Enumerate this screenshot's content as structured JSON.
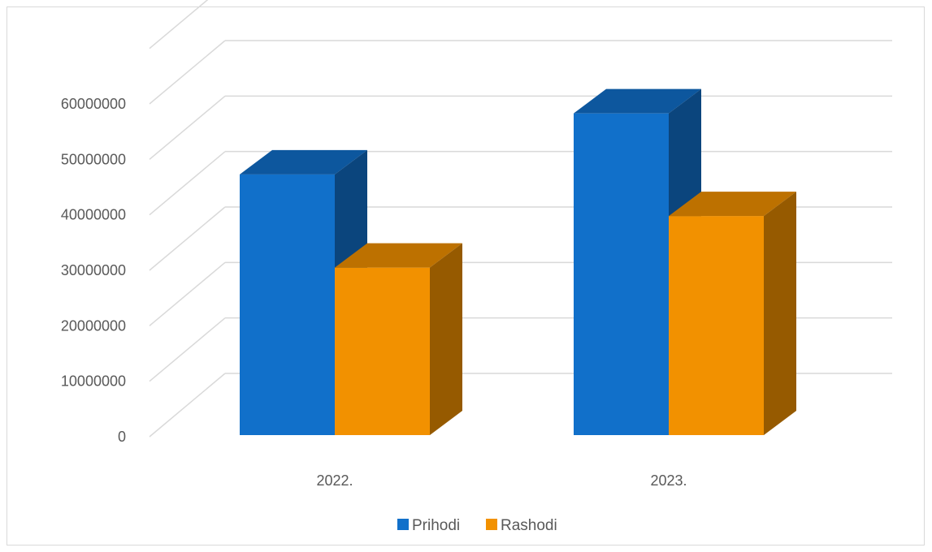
{
  "chart_data": {
    "type": "bar",
    "title": "",
    "xlabel": "",
    "ylabel": "",
    "categories": [
      "2022.",
      "2023."
    ],
    "series": [
      {
        "name": "Prihodi",
        "values": [
          47000000,
          58000000
        ],
        "color": "#1170CA"
      },
      {
        "name": "Rashodi",
        "values": [
          30200000,
          39500000
        ],
        "color": "#F29100"
      }
    ],
    "ylim": [
      0,
      60000000
    ],
    "yticks": [
      "0",
      "10000000",
      "20000000",
      "30000000",
      "40000000",
      "50000000",
      "60000000"
    ],
    "grid": true,
    "legend_position": "bottom",
    "style": "3d-clustered-column"
  }
}
